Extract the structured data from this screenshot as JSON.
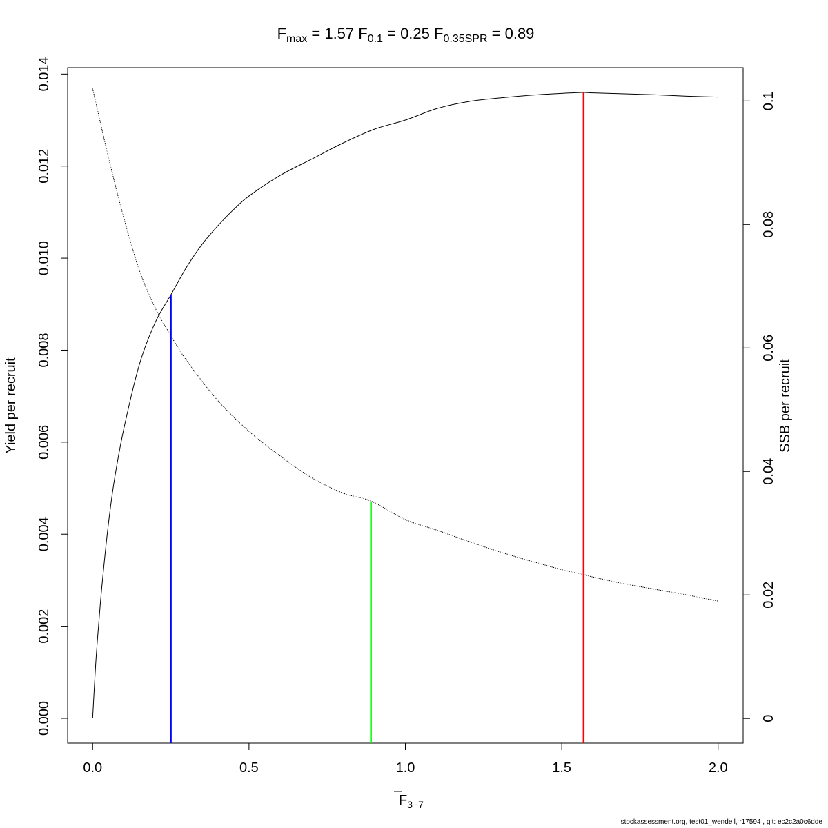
{
  "chart_data": {
    "type": "line",
    "title": {
      "fmax": {
        "base": "F",
        "sub": "max",
        "value": "1.57"
      },
      "f01": {
        "base": "F",
        "sub": "0.1",
        "value": "0.25"
      },
      "fspr": {
        "base": "F",
        "sub": "0.35SPR",
        "value": "0.89"
      }
    },
    "xlabel": {
      "base": "F",
      "sub": "3−7"
    },
    "ylabel_left": "Yield per recruit",
    "ylabel_right": "SSB per recruit",
    "xlim": [
      -0.08,
      2.08
    ],
    "ylim_left": [
      -0.00054,
      0.01414
    ],
    "ylim_right": [
      -0.004,
      0.1054
    ],
    "x_ticks": [
      {
        "value": 0.0,
        "label": "0.0"
      },
      {
        "value": 0.5,
        "label": "0.5"
      },
      {
        "value": 1.0,
        "label": "1.0"
      },
      {
        "value": 1.5,
        "label": "1.5"
      },
      {
        "value": 2.0,
        "label": "2.0"
      }
    ],
    "y_left_ticks": [
      {
        "value": 0.0,
        "label": "0.000"
      },
      {
        "value": 0.002,
        "label": "0.002"
      },
      {
        "value": 0.004,
        "label": "0.004"
      },
      {
        "value": 0.006,
        "label": "0.006"
      },
      {
        "value": 0.008,
        "label": "0.008"
      },
      {
        "value": 0.01,
        "label": "0.010"
      },
      {
        "value": 0.012,
        "label": "0.012"
      },
      {
        "value": 0.014,
        "label": "0.014"
      }
    ],
    "y_right_ticks": [
      {
        "value": 0.0,
        "label": "0"
      },
      {
        "value": 0.02,
        "label": "0.02"
      },
      {
        "value": 0.04,
        "label": "0.04"
      },
      {
        "value": 0.06,
        "label": "0.06"
      },
      {
        "value": 0.08,
        "label": "0.08"
      },
      {
        "value": 0.1,
        "label": "0.1"
      }
    ],
    "series": [
      {
        "axis": "left",
        "line_style": "solid",
        "color": "#000000",
        "x": [
          0.0,
          0.01,
          0.02,
          0.03,
          0.05,
          0.07,
          0.1,
          0.15,
          0.2,
          0.25,
          0.3,
          0.35,
          0.4,
          0.45,
          0.5,
          0.6,
          0.7,
          0.8,
          0.9,
          1.0,
          1.1,
          1.2,
          1.3,
          1.4,
          1.5,
          1.57,
          1.6,
          1.7,
          1.8,
          1.9,
          2.0
        ],
        "y": [
          0.0,
          0.0012,
          0.0021,
          0.0029,
          0.0042,
          0.0052,
          0.0063,
          0.0077,
          0.0086,
          0.0092,
          0.0098,
          0.0103,
          0.0107,
          0.01105,
          0.01135,
          0.0118,
          0.01215,
          0.0125,
          0.0128,
          0.013,
          0.01325,
          0.0134,
          0.01348,
          0.01354,
          0.01358,
          0.0136,
          0.01359,
          0.01357,
          0.01355,
          0.01352,
          0.0135
        ]
      },
      {
        "axis": "right",
        "line_style": "dotted",
        "color": "#000000",
        "x": [
          0.0,
          0.05,
          0.1,
          0.15,
          0.2,
          0.25,
          0.3,
          0.4,
          0.5,
          0.6,
          0.7,
          0.8,
          0.89,
          1.0,
          1.1,
          1.2,
          1.3,
          1.4,
          1.5,
          1.57,
          1.6,
          1.7,
          1.8,
          1.9,
          2.0
        ],
        "y": [
          0.102,
          0.091,
          0.081,
          0.0725,
          0.0665,
          0.062,
          0.058,
          0.0515,
          0.0465,
          0.0425,
          0.039,
          0.0365,
          0.0352,
          0.0322,
          0.0305,
          0.0287,
          0.027,
          0.0255,
          0.0241,
          0.0233,
          0.0229,
          0.0218,
          0.0209,
          0.02,
          0.019
        ]
      }
    ],
    "reference_lines": [
      {
        "name": "F0.1",
        "x": 0.25,
        "y_top": 0.0092,
        "color": "#0000ff"
      },
      {
        "name": "F0.35SPR",
        "x": 0.89,
        "y_top": 0.0047,
        "color": "#00ff00"
      },
      {
        "name": "Fmax",
        "x": 1.57,
        "y_top": 0.0136,
        "color": "#ff0000"
      }
    ]
  },
  "footer": "stockassessment.org, test01_wendell, r17594 , git: ec2c2a0c6dde"
}
